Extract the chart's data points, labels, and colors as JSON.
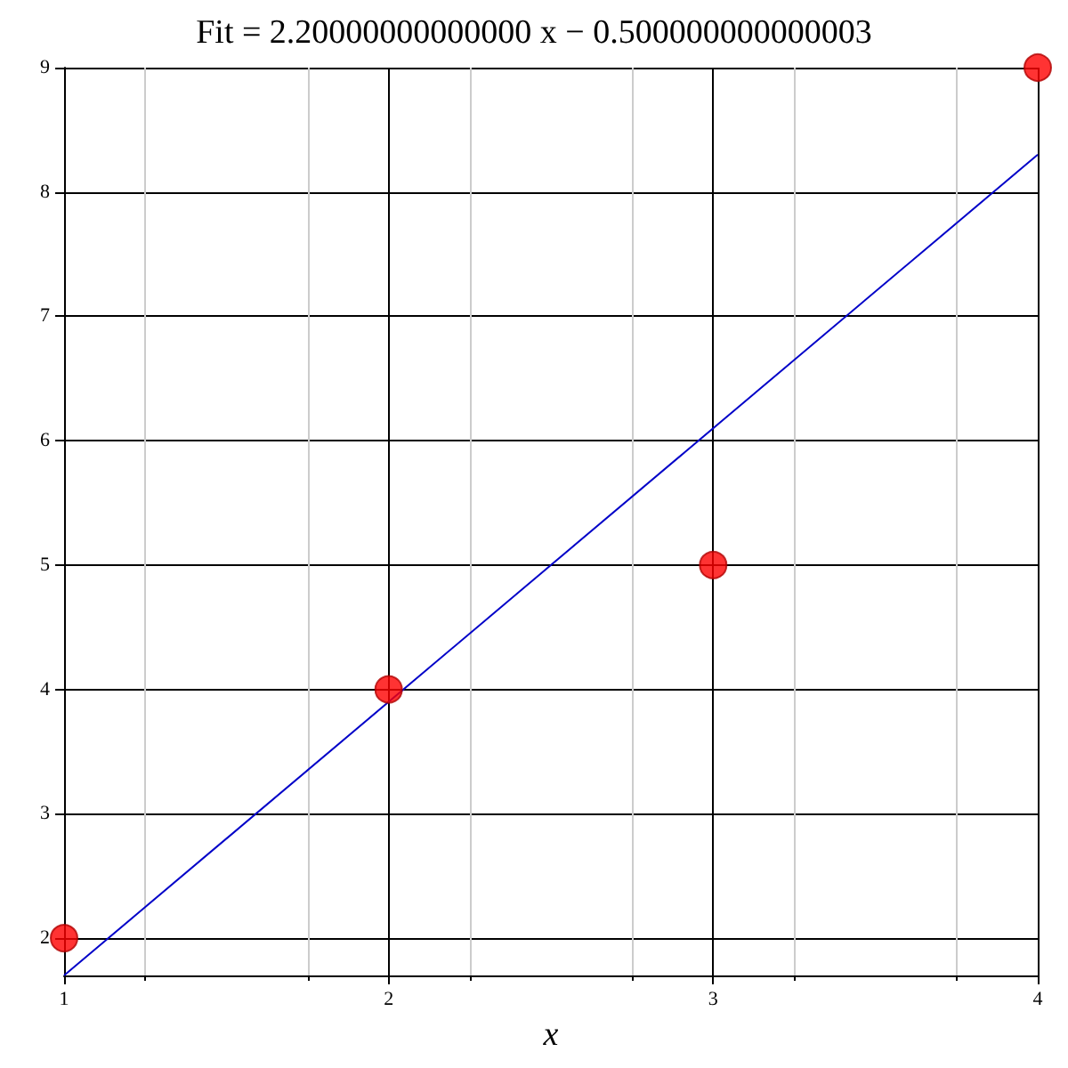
{
  "chart_data": {
    "type": "scatter",
    "title": "Fit = 2.20000000000000 x − 0.500000000000003",
    "xlabel": "x",
    "xlim": [
      1,
      4
    ],
    "xticks": [
      1,
      2,
      3,
      4
    ],
    "ylim": [
      1.7,
      9
    ],
    "yticks": [
      2,
      3,
      4,
      5,
      6,
      7,
      8,
      9
    ],
    "grid": true,
    "series": [
      {
        "color": "#ff0000",
        "marker": "circle",
        "x": [
          1,
          2,
          3,
          4
        ],
        "values": [
          2,
          4,
          5,
          9
        ]
      },
      {
        "type": "line",
        "color": "#0000c8",
        "marker": "none",
        "line_style": "solid",
        "x": [
          1,
          4
        ],
        "values": [
          1.7,
          8.3
        ]
      }
    ]
  }
}
